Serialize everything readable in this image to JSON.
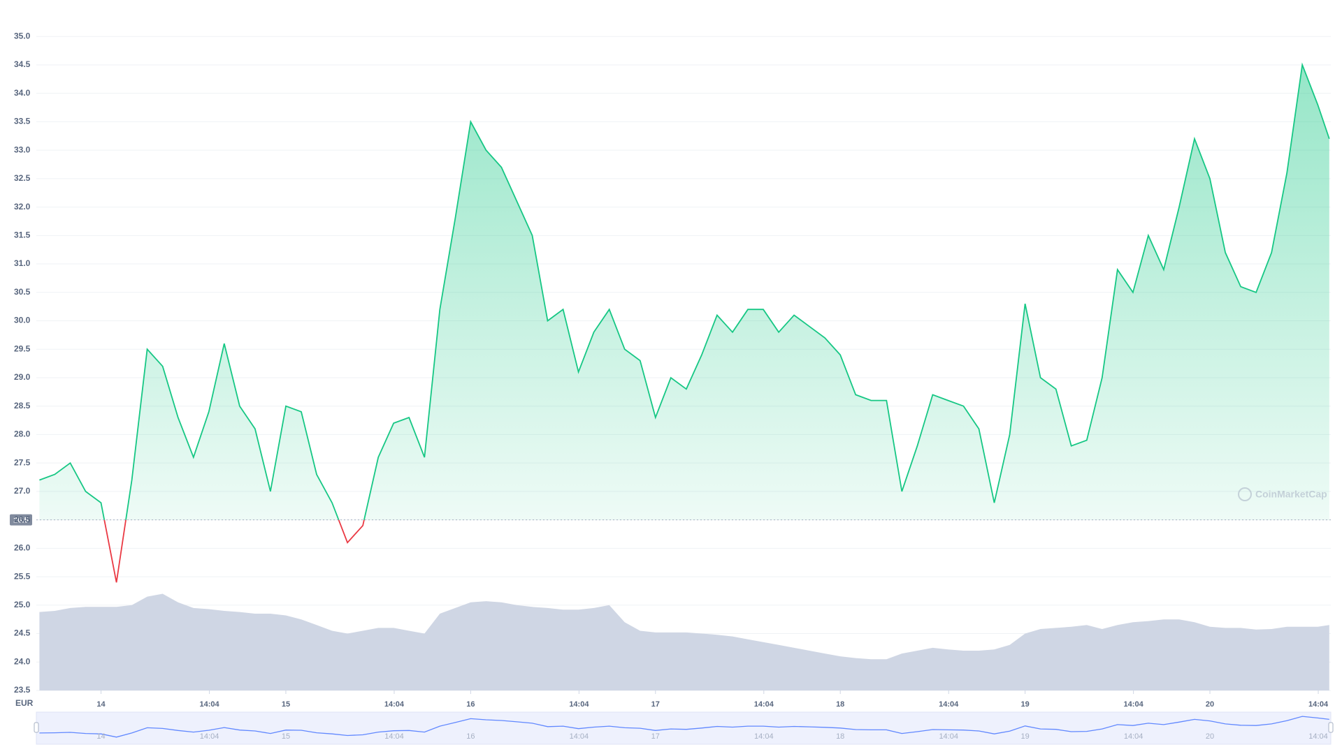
{
  "chart_data": {
    "type": "line",
    "x": [
      -8,
      -6,
      -4,
      -2,
      0,
      2,
      4,
      6,
      8,
      10,
      12,
      14,
      16,
      18,
      20,
      22,
      24,
      26,
      28,
      30,
      32,
      34,
      36,
      38,
      40,
      42,
      44,
      46,
      48,
      50,
      52,
      54,
      56,
      58,
      60,
      62,
      64,
      66,
      68,
      70,
      72,
      74,
      76,
      78,
      80,
      82,
      84,
      86,
      88,
      90,
      92,
      94,
      96,
      98,
      100,
      102,
      104,
      106,
      108,
      110,
      112,
      114,
      116,
      118,
      120,
      122,
      124,
      126,
      128,
      130,
      132,
      134,
      136,
      138,
      140,
      142,
      144,
      146,
      148,
      150,
      152,
      154,
      156,
      158,
      159.5
    ],
    "series": [
      {
        "name": "Price",
        "color": "#16c784",
        "negative_color": "#ea3943",
        "values": [
          27.2,
          27.3,
          27.5,
          27.0,
          26.8,
          25.4,
          27.2,
          29.5,
          29.2,
          28.3,
          27.6,
          28.4,
          29.6,
          28.5,
          28.1,
          27.0,
          28.5,
          28.4,
          27.3,
          26.8,
          26.1,
          26.4,
          27.6,
          28.2,
          28.3,
          27.6,
          30.2,
          31.8,
          33.5,
          33.0,
          32.7,
          32.1,
          31.5,
          30.0,
          30.2,
          29.1,
          29.8,
          30.2,
          29.5,
          29.3,
          28.3,
          29.0,
          28.8,
          29.4,
          30.1,
          29.8,
          30.2,
          30.2,
          29.8,
          30.1,
          29.9,
          29.7,
          29.4,
          28.7,
          28.6,
          28.6,
          27.0,
          27.8,
          28.7,
          28.6,
          28.5,
          28.1,
          26.8,
          28.0,
          30.3,
          29.0,
          28.8,
          27.8,
          27.9,
          29.0,
          30.9,
          30.5,
          31.5,
          30.9,
          32.0,
          33.2,
          32.5,
          31.2,
          30.6,
          30.5,
          31.2,
          32.6,
          34.5,
          33.8,
          33.2
        ]
      },
      {
        "name": "Volume",
        "color": "#cfd6e4",
        "values": [
          24.88,
          24.9,
          24.95,
          24.97,
          24.97,
          24.97,
          25.0,
          25.15,
          25.2,
          25.05,
          24.95,
          24.93,
          24.9,
          24.88,
          24.85,
          24.85,
          24.82,
          24.75,
          24.65,
          24.55,
          24.5,
          24.55,
          24.6,
          24.6,
          24.55,
          24.5,
          24.85,
          24.95,
          25.05,
          25.07,
          25.05,
          25.0,
          24.97,
          24.95,
          24.92,
          24.92,
          24.95,
          25.0,
          24.7,
          24.55,
          24.52,
          24.52,
          24.52,
          24.5,
          24.48,
          24.45,
          24.4,
          24.35,
          24.3,
          24.25,
          24.2,
          24.15,
          24.1,
          24.07,
          24.05,
          24.05,
          24.15,
          24.2,
          24.25,
          24.22,
          24.2,
          24.2,
          24.22,
          24.3,
          24.5,
          24.58,
          24.6,
          24.62,
          24.65,
          24.58,
          24.65,
          24.7,
          24.72,
          24.75,
          24.75,
          24.7,
          24.62,
          24.6,
          24.6,
          24.57,
          24.58,
          24.62,
          24.62,
          24.62,
          24.65
        ]
      }
    ],
    "baseline": {
      "value": 26.5,
      "label": "26.5"
    },
    "ylim": [
      23.5,
      35.15
    ],
    "yticks": [
      23.5,
      {
        "value": 24,
        "label": "24.0"
      },
      24.5,
      {
        "value": 25,
        "label": "25.0"
      },
      25.5,
      {
        "value": 26,
        "label": "26.0"
      },
      26.5,
      {
        "value": 27,
        "label": "27.0"
      },
      27.5,
      {
        "value": 28,
        "label": "28.0"
      },
      28.5,
      {
        "value": 29,
        "label": "29.0"
      },
      29.5,
      {
        "value": 30,
        "label": "30.0"
      },
      30.5,
      {
        "value": 31,
        "label": "31.0"
      },
      31.5,
      {
        "value": 32,
        "label": "32.0"
      },
      32.5,
      {
        "value": 33,
        "label": "33.0"
      },
      33.5,
      {
        "value": 34,
        "label": "34.0"
      },
      34.5,
      {
        "value": 35,
        "label": "35.0"
      }
    ],
    "xlim": [
      -8.4,
      159.7
    ],
    "xticks": [
      {
        "value": 0,
        "label": "14"
      },
      {
        "value": 14.07,
        "label": "14:04"
      },
      {
        "value": 24,
        "label": "15"
      },
      {
        "value": 38.07,
        "label": "14:04"
      },
      {
        "value": 48,
        "label": "16"
      },
      {
        "value": 62.07,
        "label": "14:04"
      },
      {
        "value": 72,
        "label": "17"
      },
      {
        "value": 86.07,
        "label": "14:04"
      },
      {
        "value": 96,
        "label": "18"
      },
      {
        "value": 110.07,
        "label": "14:04"
      },
      {
        "value": 120,
        "label": "19"
      },
      {
        "value": 134.07,
        "label": "14:04"
      },
      {
        "value": 144,
        "label": "20"
      },
      {
        "value": 158.07,
        "label": "14:04"
      }
    ],
    "currency": "EUR",
    "watermark": "CoinMarketCap",
    "grid": true
  }
}
